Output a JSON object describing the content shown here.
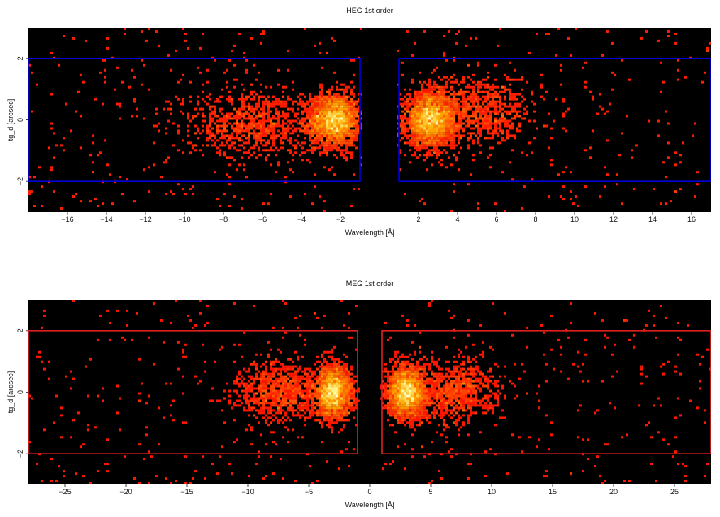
{
  "chart_data": [
    {
      "type": "heatmap",
      "title": "HEG 1st order",
      "xlabel": "Wavelength [Å]",
      "ylabel": "tg_d [arcsec]",
      "xlim": [
        -18,
        17
      ],
      "ylim": [
        -3,
        3
      ],
      "xticks": [
        -16,
        -14,
        -12,
        -10,
        -8,
        -6,
        -4,
        -2,
        2,
        4,
        6,
        8,
        10,
        12,
        14,
        16
      ],
      "yticks": [
        -2,
        0,
        2
      ],
      "background": "#000000",
      "colormap": "hot",
      "region_color": "#0000dd",
      "regions": [
        {
          "x": [
            -18,
            -1.0
          ],
          "y": [
            -2,
            2
          ]
        },
        {
          "x": [
            1.0,
            17
          ],
          "y": [
            -2,
            2
          ]
        }
      ],
      "clusters": [
        {
          "center": [
            -2.3,
            0.0
          ],
          "spread": [
            0.9,
            0.6
          ],
          "intensity": "high"
        },
        {
          "center": [
            2.6,
            0.0
          ],
          "spread": [
            0.9,
            0.6
          ],
          "intensity": "high"
        },
        {
          "center": [
            -6.5,
            -0.1
          ],
          "spread": [
            2.5,
            0.8
          ],
          "intensity": "medium"
        },
        {
          "center": [
            5.0,
            0.3
          ],
          "spread": [
            2.0,
            0.8
          ],
          "intensity": "medium"
        }
      ]
    },
    {
      "type": "heatmap",
      "title": "MEG 1st order",
      "xlabel": "Wavelength [Å]",
      "ylabel": "tg_d [arcsec]",
      "xlim": [
        -28,
        28
      ],
      "ylim": [
        -3,
        3
      ],
      "xticks": [
        -25,
        -20,
        -15,
        -10,
        -5,
        0,
        5,
        10,
        15,
        20,
        25
      ],
      "yticks": [
        -2,
        0,
        2
      ],
      "background": "#000000",
      "colormap": "hot",
      "region_color": "#e02020",
      "regions": [
        {
          "x": [
            -28,
            -1.0
          ],
          "y": [
            -2,
            2
          ]
        },
        {
          "x": [
            1.0,
            28
          ],
          "y": [
            -2,
            2
          ]
        }
      ],
      "clusters": [
        {
          "center": [
            -3.0,
            0.0
          ],
          "spread": [
            1.1,
            0.6
          ],
          "intensity": "high"
        },
        {
          "center": [
            3.0,
            0.0
          ],
          "spread": [
            1.1,
            0.6
          ],
          "intensity": "high"
        },
        {
          "center": [
            -7.5,
            0.0
          ],
          "spread": [
            2.5,
            0.7
          ],
          "intensity": "medium"
        },
        {
          "center": [
            7.0,
            0.0
          ],
          "spread": [
            2.5,
            0.7
          ],
          "intensity": "medium"
        }
      ]
    }
  ]
}
